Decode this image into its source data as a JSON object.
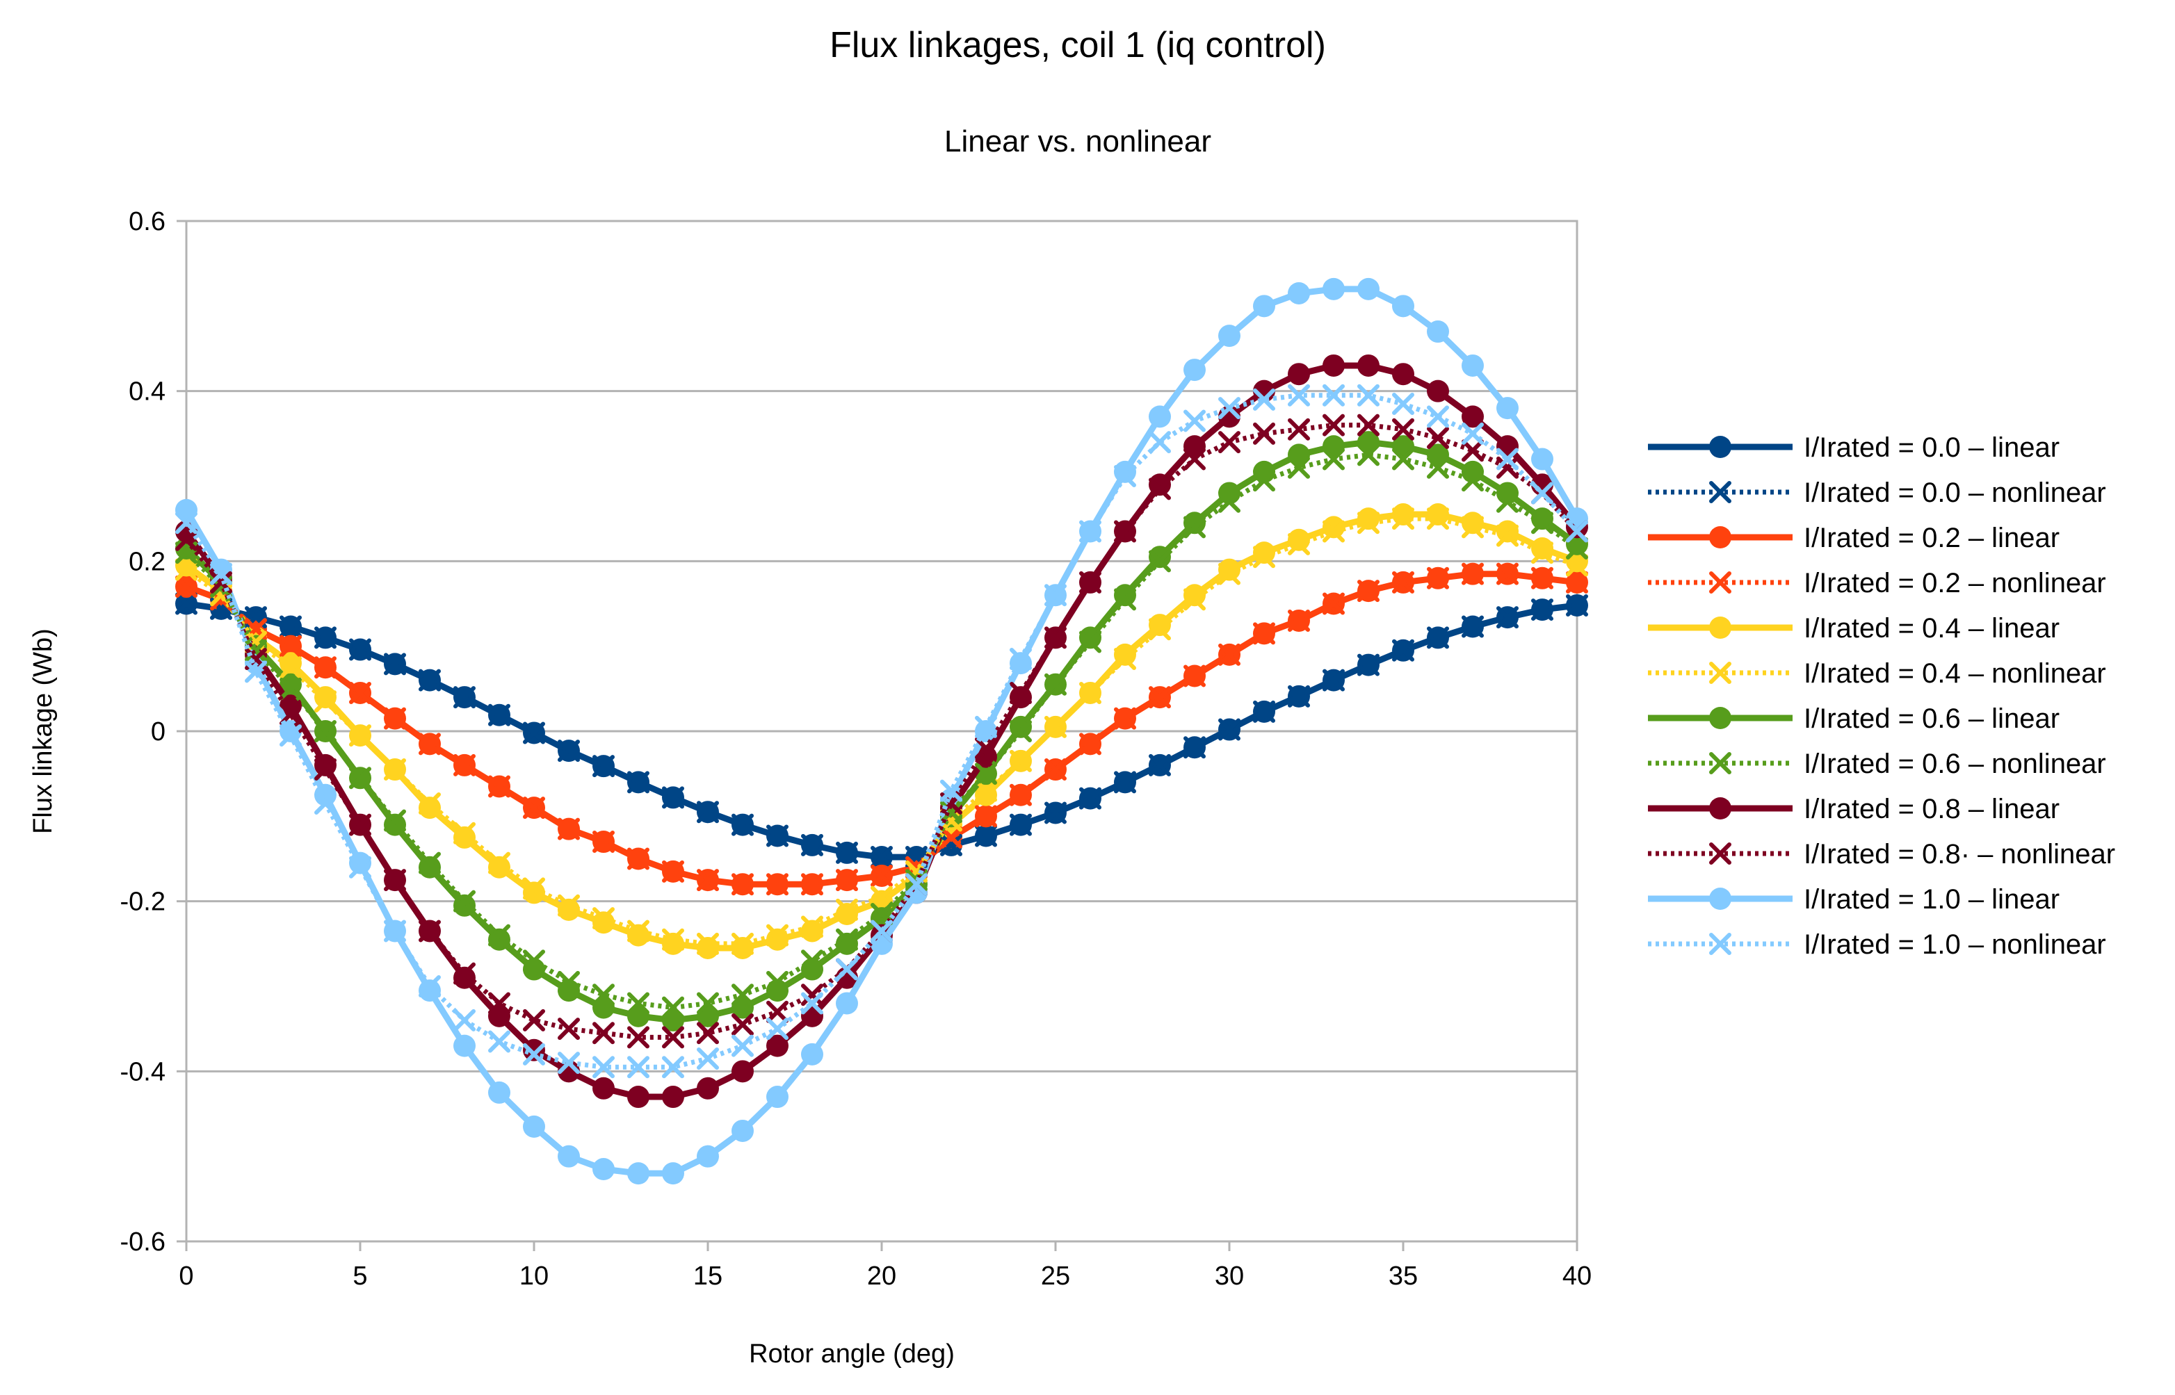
{
  "chart_data": {
    "type": "line",
    "title": "Flux linkages, coil 1 (iq control)",
    "subtitle": "Linear vs. nonlinear",
    "xlabel": "Rotor angle (deg)",
    "ylabel": "Flux linkage (Wb)",
    "xlim": [
      0,
      40
    ],
    "ylim": [
      -0.6,
      0.6
    ],
    "x_ticks": [
      "0",
      "5",
      "10",
      "15",
      "20",
      "25",
      "30",
      "35",
      "40"
    ],
    "y_ticks": [
      "0.6",
      "0.4",
      "0.2",
      "0",
      "-0.2",
      "-0.4",
      "-0.6"
    ],
    "grid": "horizontal",
    "legend_position": "right",
    "x": [
      0,
      1,
      2,
      3,
      4,
      5,
      6,
      7,
      8,
      9,
      10,
      11,
      12,
      13,
      14,
      15,
      16,
      17,
      18,
      19,
      20,
      21,
      22,
      23,
      24,
      25,
      26,
      27,
      28,
      29,
      30,
      31,
      32,
      33,
      34,
      35,
      36,
      37,
      38,
      39,
      40
    ],
    "series": [
      {
        "name": "I/Irated = 0.0 – linear",
        "color": "#004586",
        "style": "solid",
        "marker": "circle",
        "values": [
          0.15,
          0.144,
          0.134,
          0.123,
          0.11,
          0.096,
          0.079,
          0.06,
          0.04,
          0.019,
          -0.002,
          -0.023,
          -0.041,
          -0.06,
          -0.078,
          -0.095,
          -0.11,
          -0.123,
          -0.134,
          -0.143,
          -0.148,
          -0.148,
          -0.134,
          -0.123,
          -0.11,
          -0.096,
          -0.079,
          -0.06,
          -0.04,
          -0.019,
          0.002,
          0.023,
          0.041,
          0.06,
          0.078,
          0.095,
          0.11,
          0.123,
          0.134,
          0.143,
          0.148
        ]
      },
      {
        "name": "I/Irated = 0.0 – nonlinear",
        "color": "#004586",
        "style": "dotted",
        "marker": "x",
        "values": [
          0.15,
          0.144,
          0.134,
          0.123,
          0.11,
          0.096,
          0.079,
          0.06,
          0.04,
          0.019,
          -0.002,
          -0.023,
          -0.041,
          -0.06,
          -0.078,
          -0.095,
          -0.11,
          -0.123,
          -0.134,
          -0.143,
          -0.148,
          -0.148,
          -0.134,
          -0.123,
          -0.11,
          -0.096,
          -0.079,
          -0.06,
          -0.04,
          -0.019,
          0.002,
          0.023,
          0.041,
          0.06,
          0.078,
          0.095,
          0.11,
          0.123,
          0.134,
          0.143,
          0.148
        ]
      },
      {
        "name": "I/Irated = 0.2 – linear",
        "color": "#ff420e",
        "style": "solid",
        "marker": "circle",
        "values": [
          0.17,
          0.155,
          0.12,
          0.1,
          0.075,
          0.045,
          0.015,
          -0.015,
          -0.04,
          -0.065,
          -0.09,
          -0.115,
          -0.13,
          -0.15,
          -0.165,
          -0.175,
          -0.18,
          -0.18,
          -0.18,
          -0.175,
          -0.17,
          -0.16,
          -0.125,
          -0.1,
          -0.075,
          -0.045,
          -0.015,
          0.015,
          0.04,
          0.065,
          0.09,
          0.115,
          0.13,
          0.15,
          0.165,
          0.175,
          0.18,
          0.185,
          0.185,
          0.18,
          0.175
        ]
      },
      {
        "name": "I/Irated = 0.2 – nonlinear",
        "color": "#ff420e",
        "style": "dotted",
        "marker": "x",
        "values": [
          0.17,
          0.155,
          0.12,
          0.1,
          0.075,
          0.045,
          0.015,
          -0.015,
          -0.04,
          -0.065,
          -0.09,
          -0.115,
          -0.13,
          -0.15,
          -0.165,
          -0.175,
          -0.18,
          -0.18,
          -0.18,
          -0.175,
          -0.17,
          -0.16,
          -0.125,
          -0.1,
          -0.075,
          -0.045,
          -0.015,
          0.015,
          0.04,
          0.065,
          0.09,
          0.115,
          0.13,
          0.15,
          0.165,
          0.175,
          0.18,
          0.185,
          0.185,
          0.18,
          0.175
        ]
      },
      {
        "name": "I/Irated = 0.4 – linear",
        "color": "#ffd320",
        "style": "solid",
        "marker": "circle",
        "values": [
          0.195,
          0.165,
          0.11,
          0.08,
          0.04,
          -0.005,
          -0.045,
          -0.09,
          -0.125,
          -0.16,
          -0.19,
          -0.21,
          -0.225,
          -0.24,
          -0.25,
          -0.255,
          -0.255,
          -0.245,
          -0.235,
          -0.215,
          -0.2,
          -0.17,
          -0.11,
          -0.075,
          -0.035,
          0.005,
          0.045,
          0.09,
          0.125,
          0.16,
          0.19,
          0.21,
          0.225,
          0.24,
          0.25,
          0.255,
          0.255,
          0.245,
          0.235,
          0.215,
          0.2
        ]
      },
      {
        "name": "I/Irated = 0.4 – nonlinear",
        "color": "#ffd320",
        "style": "dotted",
        "marker": "x",
        "values": [
          0.19,
          0.16,
          0.105,
          0.075,
          0.035,
          -0.005,
          -0.045,
          -0.085,
          -0.12,
          -0.155,
          -0.185,
          -0.205,
          -0.22,
          -0.235,
          -0.245,
          -0.25,
          -0.25,
          -0.24,
          -0.23,
          -0.21,
          -0.195,
          -0.165,
          -0.105,
          -0.07,
          -0.035,
          0.005,
          0.045,
          0.085,
          0.12,
          0.155,
          0.185,
          0.205,
          0.22,
          0.235,
          0.245,
          0.25,
          0.25,
          0.24,
          0.23,
          0.21,
          0.195
        ]
      },
      {
        "name": "I/Irated = 0.6 – linear",
        "color": "#579d1c",
        "style": "solid",
        "marker": "circle",
        "values": [
          0.215,
          0.175,
          0.1,
          0.055,
          0.0,
          -0.055,
          -0.11,
          -0.16,
          -0.205,
          -0.245,
          -0.28,
          -0.305,
          -0.325,
          -0.335,
          -0.34,
          -0.335,
          -0.325,
          -0.305,
          -0.28,
          -0.25,
          -0.22,
          -0.18,
          -0.1,
          -0.05,
          0.005,
          0.055,
          0.11,
          0.16,
          0.205,
          0.245,
          0.28,
          0.305,
          0.325,
          0.335,
          0.34,
          0.335,
          0.325,
          0.305,
          0.28,
          0.25,
          0.22
        ]
      },
      {
        "name": "I/Irated = 0.6 – nonlinear",
        "color": "#579d1c",
        "style": "dotted",
        "marker": "x",
        "values": [
          0.21,
          0.17,
          0.095,
          0.05,
          0.0,
          -0.055,
          -0.105,
          -0.155,
          -0.2,
          -0.24,
          -0.27,
          -0.295,
          -0.31,
          -0.32,
          -0.325,
          -0.32,
          -0.31,
          -0.295,
          -0.27,
          -0.245,
          -0.215,
          -0.175,
          -0.095,
          -0.05,
          0.0,
          0.055,
          0.105,
          0.155,
          0.2,
          0.24,
          0.27,
          0.295,
          0.31,
          0.32,
          0.325,
          0.32,
          0.31,
          0.295,
          0.27,
          0.245,
          0.215
        ]
      },
      {
        "name": "I/Irated = 0.8 – linear",
        "color": "#7e0021",
        "style": "solid",
        "marker": "circle",
        "values": [
          0.235,
          0.18,
          0.09,
          0.03,
          -0.04,
          -0.11,
          -0.175,
          -0.235,
          -0.29,
          -0.335,
          -0.375,
          -0.4,
          -0.42,
          -0.43,
          -0.43,
          -0.42,
          -0.4,
          -0.37,
          -0.335,
          -0.29,
          -0.24,
          -0.19,
          -0.09,
          -0.03,
          0.04,
          0.11,
          0.175,
          0.235,
          0.29,
          0.335,
          0.37,
          0.4,
          0.42,
          0.43,
          0.43,
          0.42,
          0.4,
          0.37,
          0.335,
          0.29,
          0.24
        ]
      },
      {
        "name": "I/Irated = 0.8· – nonlinear",
        "color": "#7e0021",
        "style": "dotted",
        "marker": "x",
        "values": [
          0.225,
          0.175,
          0.085,
          0.02,
          -0.045,
          -0.11,
          -0.175,
          -0.235,
          -0.285,
          -0.32,
          -0.34,
          -0.35,
          -0.355,
          -0.36,
          -0.36,
          -0.355,
          -0.345,
          -0.33,
          -0.31,
          -0.28,
          -0.235,
          -0.18,
          -0.085,
          -0.02,
          0.045,
          0.11,
          0.175,
          0.235,
          0.285,
          0.32,
          0.34,
          0.35,
          0.355,
          0.36,
          0.36,
          0.355,
          0.345,
          0.33,
          0.31,
          0.28,
          0.235
        ]
      },
      {
        "name": "I/Irated = 1.0 – linear",
        "color": "#83caff",
        "style": "solid",
        "marker": "circle",
        "values": [
          0.26,
          0.19,
          0.08,
          0.0,
          -0.075,
          -0.155,
          -0.235,
          -0.305,
          -0.37,
          -0.425,
          -0.465,
          -0.5,
          -0.515,
          -0.52,
          -0.52,
          -0.5,
          -0.47,
          -0.43,
          -0.38,
          -0.32,
          -0.25,
          -0.19,
          -0.08,
          0.0,
          0.08,
          0.16,
          0.235,
          0.305,
          0.37,
          0.425,
          0.465,
          0.5,
          0.515,
          0.52,
          0.52,
          0.5,
          0.47,
          0.43,
          0.38,
          0.32,
          0.25
        ]
      },
      {
        "name": "I/Irated = 1.0 – nonlinear",
        "color": "#83caff",
        "style": "dotted",
        "marker": "x",
        "values": [
          0.245,
          0.185,
          0.07,
          -0.005,
          -0.085,
          -0.16,
          -0.235,
          -0.3,
          -0.34,
          -0.365,
          -0.38,
          -0.39,
          -0.395,
          -0.395,
          -0.395,
          -0.385,
          -0.37,
          -0.35,
          -0.32,
          -0.28,
          -0.235,
          -0.18,
          -0.07,
          0.005,
          0.085,
          0.16,
          0.235,
          0.3,
          0.34,
          0.365,
          0.38,
          0.39,
          0.395,
          0.395,
          0.395,
          0.385,
          0.37,
          0.35,
          0.32,
          0.28,
          0.235
        ]
      }
    ]
  }
}
